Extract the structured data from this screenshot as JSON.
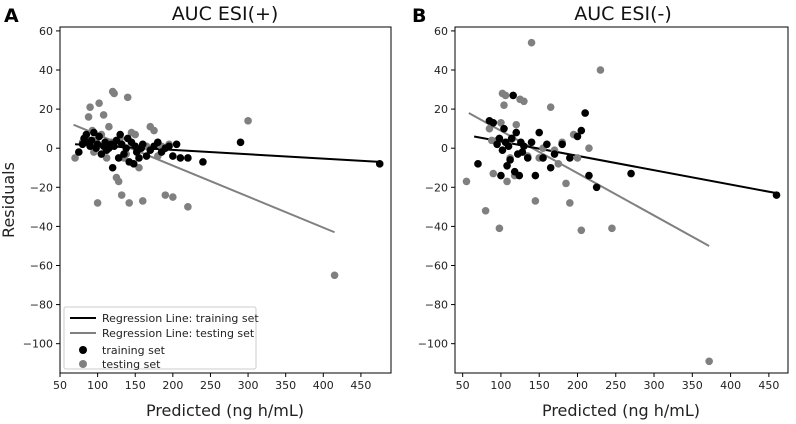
{
  "chart_data": [
    {
      "type": "scatter",
      "panel_label": "A",
      "title": "AUC ESI(+)",
      "xlabel": "Predicted (ng h/mL)",
      "ylabel": "Residuals",
      "xlim": [
        50,
        490
      ],
      "ylim": [
        -115,
        62
      ],
      "xticks": [
        "50",
        "100",
        "150",
        "200",
        "250",
        "300",
        "350",
        "400",
        "450"
      ],
      "yticks": [
        "60",
        "40",
        "20",
        "0",
        "−20",
        "−40",
        "−60",
        "−80",
        "−100"
      ],
      "legend": {
        "position": "lower-left",
        "entries": [
          "Regression Line: training set",
          "Regression Line: testing set",
          "training set",
          "testing set"
        ]
      },
      "colors": {
        "training": "#000000",
        "testing": "#808080"
      },
      "regression_training": {
        "x": [
          70,
          475
        ],
        "y": [
          2,
          -7
        ]
      },
      "regression_testing": {
        "x": [
          68,
          415
        ],
        "y": [
          12,
          -43
        ]
      },
      "training_points": [
        [
          75,
          -2
        ],
        [
          80,
          2
        ],
        [
          82,
          5
        ],
        [
          85,
          7
        ],
        [
          88,
          3
        ],
        [
          90,
          1
        ],
        [
          92,
          4
        ],
        [
          95,
          8
        ],
        [
          98,
          0
        ],
        [
          100,
          2
        ],
        [
          102,
          6
        ],
        [
          105,
          -3
        ],
        [
          108,
          1
        ],
        [
          110,
          3
        ],
        [
          112,
          -1
        ],
        [
          115,
          0
        ],
        [
          118,
          2
        ],
        [
          120,
          -10
        ],
        [
          122,
          1
        ],
        [
          125,
          4
        ],
        [
          128,
          -5
        ],
        [
          130,
          7
        ],
        [
          132,
          2
        ],
        [
          135,
          -3
        ],
        [
          138,
          0
        ],
        [
          140,
          5
        ],
        [
          142,
          -7
        ],
        [
          145,
          3
        ],
        [
          148,
          -8
        ],
        [
          150,
          1
        ],
        [
          152,
          -2
        ],
        [
          155,
          -5
        ],
        [
          158,
          0
        ],
        [
          160,
          2
        ],
        [
          165,
          -4
        ],
        [
          170,
          -1
        ],
        [
          175,
          1
        ],
        [
          180,
          3
        ],
        [
          185,
          -2
        ],
        [
          190,
          0
        ],
        [
          195,
          1
        ],
        [
          200,
          -4
        ],
        [
          205,
          2
        ],
        [
          210,
          -5
        ],
        [
          220,
          -5
        ],
        [
          240,
          -7
        ],
        [
          290,
          3
        ],
        [
          475,
          -8
        ]
      ],
      "testing_points": [
        [
          70,
          -5
        ],
        [
          80,
          3
        ],
        [
          85,
          5
        ],
        [
          88,
          16
        ],
        [
          90,
          21
        ],
        [
          93,
          9
        ],
        [
          95,
          -2
        ],
        [
          98,
          4
        ],
        [
          100,
          -28
        ],
        [
          102,
          23
        ],
        [
          105,
          7
        ],
        [
          108,
          17
        ],
        [
          110,
          1
        ],
        [
          112,
          -5
        ],
        [
          115,
          11
        ],
        [
          118,
          3
        ],
        [
          120,
          29
        ],
        [
          122,
          28
        ],
        [
          125,
          -15
        ],
        [
          128,
          -17
        ],
        [
          130,
          5
        ],
        [
          132,
          -24
        ],
        [
          135,
          -5
        ],
        [
          138,
          -3
        ],
        [
          140,
          26
        ],
        [
          142,
          -28
        ],
        [
          145,
          8
        ],
        [
          150,
          7
        ],
        [
          155,
          -10
        ],
        [
          160,
          -27
        ],
        [
          165,
          1
        ],
        [
          170,
          11
        ],
        [
          175,
          9
        ],
        [
          180,
          -4
        ],
        [
          185,
          1
        ],
        [
          190,
          -24
        ],
        [
          195,
          2
        ],
        [
          200,
          -25
        ],
        [
          220,
          -30
        ],
        [
          300,
          14
        ],
        [
          415,
          -65
        ]
      ]
    },
    {
      "type": "scatter",
      "panel_label": "B",
      "title": "AUC ESI(-)",
      "xlabel": "Predicted (ng h/mL)",
      "ylabel": "",
      "xlim": [
        40,
        475
      ],
      "ylim": [
        -115,
        62
      ],
      "xticks": [
        "50",
        "100",
        "150",
        "200",
        "250",
        "300",
        "350",
        "400",
        "450"
      ],
      "yticks": [
        "60",
        "40",
        "20",
        "0",
        "−20",
        "−40",
        "−60",
        "−80",
        "−100"
      ],
      "colors": {
        "training": "#000000",
        "testing": "#808080"
      },
      "regression_training": {
        "x": [
          65,
          460
        ],
        "y": [
          6,
          -23
        ]
      },
      "regression_testing": {
        "x": [
          58,
          372
        ],
        "y": [
          18,
          -50
        ]
      },
      "training_points": [
        [
          70,
          -8
        ],
        [
          85,
          14
        ],
        [
          90,
          13
        ],
        [
          95,
          2
        ],
        [
          98,
          5
        ],
        [
          100,
          -14
        ],
        [
          102,
          -1
        ],
        [
          104,
          10
        ],
        [
          106,
          3
        ],
        [
          108,
          -9
        ],
        [
          110,
          1
        ],
        [
          112,
          -6
        ],
        [
          114,
          5
        ],
        [
          116,
          27
        ],
        [
          118,
          -12
        ],
        [
          120,
          8
        ],
        [
          122,
          -3
        ],
        [
          124,
          -14
        ],
        [
          126,
          3
        ],
        [
          128,
          -2
        ],
        [
          130,
          1
        ],
        [
          135,
          -5
        ],
        [
          140,
          3
        ],
        [
          145,
          -14
        ],
        [
          150,
          8
        ],
        [
          155,
          -5
        ],
        [
          160,
          2
        ],
        [
          165,
          -10
        ],
        [
          170,
          -3
        ],
        [
          180,
          2
        ],
        [
          190,
          -5
        ],
        [
          200,
          6
        ],
        [
          205,
          9
        ],
        [
          210,
          18
        ],
        [
          215,
          -14
        ],
        [
          225,
          -20
        ],
        [
          270,
          -13
        ],
        [
          460,
          -24
        ]
      ],
      "testing_points": [
        [
          55,
          -17
        ],
        [
          80,
          -32
        ],
        [
          85,
          10
        ],
        [
          88,
          4
        ],
        [
          90,
          -13
        ],
        [
          95,
          4
        ],
        [
          98,
          -41
        ],
        [
          100,
          13
        ],
        [
          102,
          28
        ],
        [
          104,
          22
        ],
        [
          106,
          27
        ],
        [
          108,
          -17
        ],
        [
          110,
          3
        ],
        [
          112,
          -5
        ],
        [
          115,
          5
        ],
        [
          118,
          -14
        ],
        [
          120,
          12
        ],
        [
          125,
          25
        ],
        [
          130,
          24
        ],
        [
          135,
          -4
        ],
        [
          140,
          54
        ],
        [
          145,
          -27
        ],
        [
          150,
          -5
        ],
        [
          155,
          0
        ],
        [
          165,
          21
        ],
        [
          170,
          -1
        ],
        [
          175,
          -8
        ],
        [
          180,
          3
        ],
        [
          185,
          -18
        ],
        [
          190,
          -28
        ],
        [
          195,
          7
        ],
        [
          200,
          -5
        ],
        [
          205,
          -42
        ],
        [
          210,
          18
        ],
        [
          215,
          0
        ],
        [
          230,
          40
        ],
        [
          245,
          -41
        ],
        [
          372,
          -109
        ]
      ]
    }
  ]
}
